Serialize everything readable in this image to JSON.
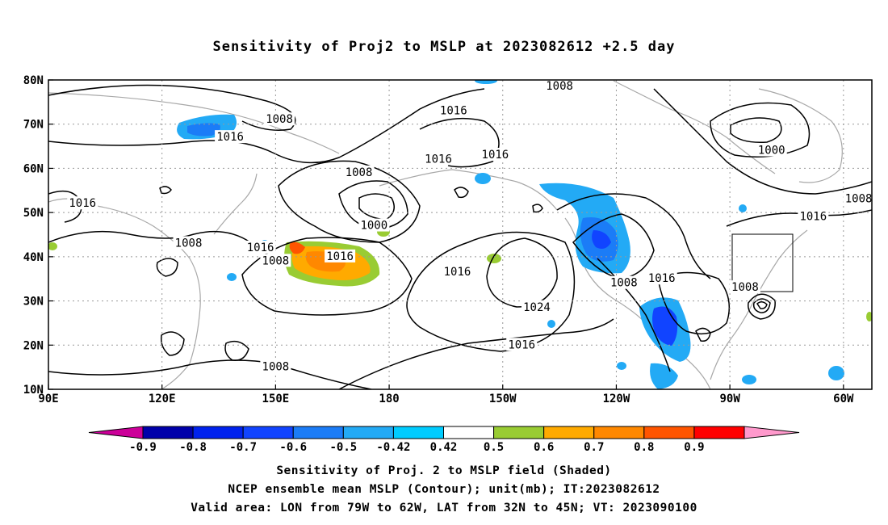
{
  "title": "Sensitivity of Proj2 to MSLP at 2023082612 +2.5 day",
  "lat_labels": [
    "80N",
    "70N",
    "60N",
    "50N",
    "40N",
    "30N",
    "20N",
    "10N"
  ],
  "lon_labels": [
    "90E",
    "120E",
    "150E",
    "180",
    "150W",
    "120W",
    "90W",
    "60W"
  ],
  "contour_labels": [
    {
      "text": "1008",
      "lon": -135,
      "lat": 78.5
    },
    {
      "text": "1016",
      "lon": -163,
      "lat": 73
    },
    {
      "text": "1008",
      "lon": 151,
      "lat": 71
    },
    {
      "text": "1016",
      "lon": 138,
      "lat": 67
    },
    {
      "text": "1016",
      "lon": -167,
      "lat": 62
    },
    {
      "text": "1016",
      "lon": -152,
      "lat": 63
    },
    {
      "text": "1008",
      "lon": 172,
      "lat": 59
    },
    {
      "text": "1016",
      "lon": 99,
      "lat": 52
    },
    {
      "text": "1000",
      "lon": 176,
      "lat": 47
    },
    {
      "text": "1008",
      "lon": 127,
      "lat": 43
    },
    {
      "text": "1016",
      "lon": 146,
      "lat": 42
    },
    {
      "text": "1008",
      "lon": 150,
      "lat": 39
    },
    {
      "text": "1016",
      "lon": 167,
      "lat": 40
    },
    {
      "text": "1016",
      "lon": -162,
      "lat": 36.5
    },
    {
      "text": "1024",
      "lon": -141,
      "lat": 28.5
    },
    {
      "text": "1008",
      "lon": -118,
      "lat": 34
    },
    {
      "text": "1016",
      "lon": -108,
      "lat": 35
    },
    {
      "text": "1008",
      "lon": -86,
      "lat": 33
    },
    {
      "text": "1016",
      "lon": -145,
      "lat": 20
    },
    {
      "text": "1008",
      "lon": 150,
      "lat": 15
    },
    {
      "text": "1000",
      "lon": -79,
      "lat": 64
    },
    {
      "text": "1008",
      "lon": -56,
      "lat": 53
    },
    {
      "text": "1016",
      "lon": -68,
      "lat": 49
    }
  ],
  "colorbar": {
    "labels": [
      "-0.9",
      "-0.8",
      "-0.7",
      "-0.6",
      "-0.5",
      "-0.42",
      "0.42",
      "0.5",
      "0.6",
      "0.7",
      "0.8",
      "0.9"
    ],
    "colors": [
      "#0000aa",
      "#0022ee",
      "#1144ff",
      "#1b7cf7",
      "#23aaf5",
      "#00ccff",
      "#ffffff",
      "#99cc33",
      "#ffaa00",
      "#ff8800",
      "#ff5500",
      "#ff0000"
    ],
    "below_color": "#cc0099",
    "above_color": "#ff99cc"
  },
  "caption": {
    "line1": "Sensitivity of Proj. 2 to MSLP field (Shaded)",
    "line2": "NCEP ensemble mean MSLP (Contour); unit(mb); IT:2023082612",
    "line3": "Valid area: LON from 79W to 62W, LAT from 32N to 45N; VT: 2023090100"
  },
  "valid_area": {
    "lon_min": -79,
    "lon_max": -62,
    "lat_min": 32,
    "lat_max": 45
  }
}
